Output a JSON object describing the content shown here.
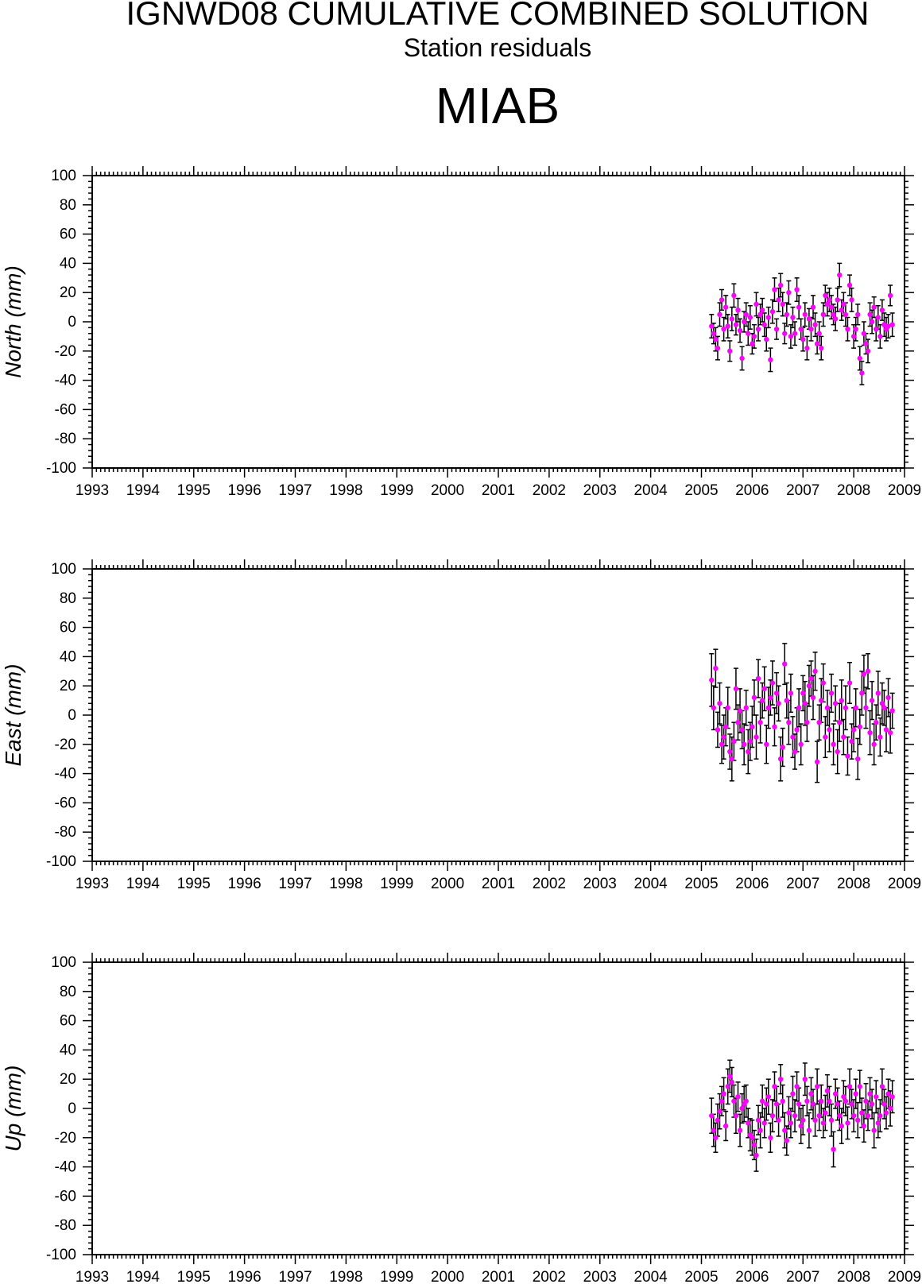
{
  "title": "IGNWD08 CUMULATIVE COMBINED SOLUTION",
  "subtitle": "Station residuals",
  "station": "MIAB",
  "colors": {
    "marker": "#ff00ff",
    "errorbar": "#000000",
    "axis": "#000000"
  },
  "chart_data": [
    {
      "type": "scatter",
      "ylabel": "North (mm)",
      "xlim": [
        1993,
        2009
      ],
      "ylim": [
        -100,
        100
      ],
      "x_ticks": [
        "1993",
        "1994",
        "1995",
        "1996",
        "1997",
        "1998",
        "1999",
        "2000",
        "2001",
        "2002",
        "2003",
        "2004",
        "2005",
        "2006",
        "2007",
        "2008",
        "2009"
      ],
      "y_ticks": [
        "100",
        "80",
        "60",
        "40",
        "20",
        "0",
        "-20",
        "-40",
        "-60",
        "-80",
        "-100"
      ],
      "grid": false,
      "series": [
        {
          "x": [
            2005.2,
            2005.24,
            2005.28,
            2005.32,
            2005.36,
            2005.4,
            2005.44,
            2005.48,
            2005.52,
            2005.56,
            2005.6,
            2005.64,
            2005.68,
            2005.72,
            2005.76,
            2005.8,
            2005.84,
            2005.88,
            2005.92,
            2005.96,
            2006.0,
            2006.04,
            2006.08,
            2006.12,
            2006.16,
            2006.2,
            2006.24,
            2006.28,
            2006.32,
            2006.36,
            2006.4,
            2006.44,
            2006.48,
            2006.52,
            2006.56,
            2006.6,
            2006.64,
            2006.68,
            2006.72,
            2006.76,
            2006.8,
            2006.84,
            2006.88,
            2006.92,
            2006.96,
            2007.0,
            2007.04,
            2007.08,
            2007.12,
            2007.16,
            2007.2,
            2007.24,
            2007.28,
            2007.32,
            2007.36,
            2007.4,
            2007.44,
            2007.48,
            2007.52,
            2007.56,
            2007.6,
            2007.64,
            2007.68,
            2007.72,
            2007.76,
            2007.8,
            2007.84,
            2007.88,
            2007.92,
            2007.96,
            2008.0,
            2008.04,
            2008.08,
            2008.12,
            2008.16,
            2008.2,
            2008.24,
            2008.28,
            2008.32,
            2008.36,
            2008.4,
            2008.44,
            2008.48,
            2008.52,
            2008.56,
            2008.6,
            2008.64,
            2008.68,
            2008.72,
            2008.76
          ],
          "y": [
            -3,
            -8,
            -12,
            -18,
            5,
            15,
            -5,
            10,
            -3,
            -20,
            2,
            18,
            -2,
            8,
            -6,
            -25,
            0,
            5,
            -8,
            3,
            -15,
            -10,
            12,
            -5,
            5,
            8,
            -2,
            -12,
            3,
            -26,
            7,
            22,
            -5,
            15,
            25,
            12,
            -8,
            5,
            20,
            -10,
            3,
            -8,
            22,
            10,
            -5,
            -12,
            5,
            -18,
            2,
            -5,
            10,
            -2,
            -15,
            -8,
            -18,
            5,
            18,
            12,
            15,
            10,
            5,
            2,
            15,
            32,
            8,
            12,
            5,
            -5,
            25,
            15,
            -10,
            -5,
            5,
            -25,
            -35,
            -8,
            -15,
            -20,
            5,
            0,
            10,
            -5,
            3,
            -10,
            8,
            -2,
            -5,
            -3,
            18,
            -2
          ],
          "err": [
            8,
            7,
            8,
            8,
            8,
            7,
            8,
            8,
            8,
            7,
            8,
            8,
            7,
            8,
            8,
            8,
            7,
            8,
            8,
            8,
            7,
            8,
            8,
            8,
            7,
            8,
            8,
            8,
            7,
            8,
            8,
            8,
            7,
            8,
            8,
            8,
            7,
            8,
            8,
            8,
            7,
            8,
            8,
            8,
            7,
            8,
            8,
            8,
            7,
            8,
            8,
            8,
            7,
            8,
            8,
            8,
            7,
            8,
            8,
            8,
            7,
            8,
            8,
            8,
            7,
            8,
            8,
            8,
            7,
            8,
            8,
            8,
            7,
            8,
            8,
            8,
            7,
            8,
            8,
            8,
            7,
            8,
            8,
            8,
            7,
            8,
            8,
            8,
            7,
            8
          ]
        }
      ]
    },
    {
      "type": "scatter",
      "ylabel": "East (mm)",
      "xlim": [
        1993,
        2009
      ],
      "ylim": [
        -100,
        100
      ],
      "x_ticks": [
        "1993",
        "1994",
        "1995",
        "1996",
        "1997",
        "1998",
        "1999",
        "2000",
        "2001",
        "2002",
        "2003",
        "2004",
        "2005",
        "2006",
        "2007",
        "2008",
        "2009"
      ],
      "y_ticks": [
        "100",
        "80",
        "60",
        "40",
        "20",
        "0",
        "-20",
        "-40",
        "-60",
        "-80",
        "-100"
      ],
      "grid": false,
      "series": [
        {
          "x": [
            2005.2,
            2005.24,
            2005.28,
            2005.32,
            2005.36,
            2005.4,
            2005.44,
            2005.48,
            2005.52,
            2005.56,
            2005.6,
            2005.64,
            2005.68,
            2005.72,
            2005.76,
            2005.8,
            2005.84,
            2005.88,
            2005.92,
            2005.96,
            2006.0,
            2006.04,
            2006.08,
            2006.12,
            2006.16,
            2006.2,
            2006.24,
            2006.28,
            2006.32,
            2006.36,
            2006.4,
            2006.44,
            2006.48,
            2006.52,
            2006.56,
            2006.6,
            2006.64,
            2006.68,
            2006.72,
            2006.76,
            2006.8,
            2006.84,
            2006.88,
            2006.92,
            2006.96,
            2007.0,
            2007.04,
            2007.08,
            2007.12,
            2007.16,
            2007.2,
            2007.24,
            2007.28,
            2007.32,
            2007.36,
            2007.4,
            2007.44,
            2007.48,
            2007.52,
            2007.56,
            2007.6,
            2007.64,
            2007.68,
            2007.72,
            2007.76,
            2007.8,
            2007.84,
            2007.88,
            2007.92,
            2007.96,
            2008.0,
            2008.04,
            2008.08,
            2008.12,
            2008.16,
            2008.2,
            2008.24,
            2008.28,
            2008.32,
            2008.36,
            2008.4,
            2008.44,
            2008.48,
            2008.52,
            2008.56,
            2008.6,
            2008.64,
            2008.68,
            2008.72,
            2008.76
          ],
          "y": [
            24,
            5,
            32,
            -10,
            8,
            -20,
            -15,
            -8,
            5,
            -25,
            -30,
            -18,
            18,
            -5,
            3,
            -10,
            -20,
            5,
            -25,
            -18,
            -8,
            12,
            -15,
            25,
            -5,
            10,
            18,
            -20,
            5,
            12,
            22,
            -8,
            15,
            8,
            -30,
            -22,
            35,
            10,
            -5,
            15,
            -15,
            -25,
            -10,
            5,
            -20,
            15,
            8,
            -5,
            20,
            25,
            12,
            30,
            -32,
            -5,
            10,
            22,
            -15,
            5,
            -10,
            15,
            -20,
            8,
            -25,
            -5,
            10,
            -15,
            5,
            -28,
            22,
            -18,
            -10,
            5,
            -30,
            -8,
            15,
            28,
            5,
            30,
            -12,
            10,
            -20,
            -5,
            15,
            -15,
            8,
            5,
            -10,
            12,
            -12,
            3
          ],
          "err": [
            18,
            15,
            13,
            12,
            14,
            13,
            15,
            13,
            14,
            12,
            15,
            13,
            14,
            12,
            15,
            13,
            14,
            12,
            15,
            13,
            14,
            12,
            15,
            13,
            14,
            12,
            15,
            13,
            14,
            12,
            15,
            13,
            14,
            12,
            15,
            13,
            14,
            12,
            15,
            13,
            14,
            12,
            15,
            13,
            14,
            12,
            15,
            13,
            14,
            12,
            15,
            13,
            14,
            12,
            15,
            13,
            14,
            12,
            15,
            13,
            14,
            12,
            15,
            13,
            14,
            12,
            15,
            13,
            14,
            12,
            15,
            13,
            14,
            12,
            15,
            13,
            14,
            12,
            15,
            13,
            14,
            12,
            15,
            13,
            14,
            12,
            15,
            13,
            14,
            12
          ]
        }
      ]
    },
    {
      "type": "scatter",
      "ylabel": "Up (mm)",
      "xlim": [
        1993,
        2009
      ],
      "ylim": [
        -100,
        100
      ],
      "x_ticks": [
        "1993",
        "1994",
        "1995",
        "1996",
        "1997",
        "1998",
        "1999",
        "2000",
        "2001",
        "2002",
        "2003",
        "2004",
        "2005",
        "2006",
        "2007",
        "2008",
        "2009"
      ],
      "y_ticks": [
        "100",
        "80",
        "60",
        "40",
        "20",
        "0",
        "-20",
        "-40",
        "-60",
        "-80",
        "-100"
      ],
      "grid": false,
      "series": [
        {
          "x": [
            2005.2,
            2005.24,
            2005.28,
            2005.32,
            2005.36,
            2005.4,
            2005.44,
            2005.48,
            2005.52,
            2005.56,
            2005.6,
            2005.64,
            2005.68,
            2005.72,
            2005.76,
            2005.8,
            2005.84,
            2005.88,
            2005.92,
            2005.96,
            2006.0,
            2006.04,
            2006.08,
            2006.12,
            2006.16,
            2006.2,
            2006.24,
            2006.28,
            2006.32,
            2006.36,
            2006.4,
            2006.44,
            2006.48,
            2006.52,
            2006.56,
            2006.6,
            2006.64,
            2006.68,
            2006.72,
            2006.76,
            2006.8,
            2006.84,
            2006.88,
            2006.92,
            2006.96,
            2007.0,
            2007.04,
            2007.08,
            2007.12,
            2007.16,
            2007.2,
            2007.24,
            2007.28,
            2007.32,
            2007.36,
            2007.4,
            2007.44,
            2007.48,
            2007.52,
            2007.56,
            2007.6,
            2007.64,
            2007.68,
            2007.72,
            2007.76,
            2007.8,
            2007.84,
            2007.88,
            2007.92,
            2007.96,
            2008.0,
            2008.04,
            2008.08,
            2008.12,
            2008.16,
            2008.2,
            2008.24,
            2008.28,
            2008.32,
            2008.36,
            2008.4,
            2008.44,
            2008.48,
            2008.52,
            2008.56,
            2008.6,
            2008.64,
            2008.68,
            2008.72,
            2008.76
          ],
          "y": [
            -5,
            -15,
            -20,
            -8,
            -2,
            5,
            10,
            -12,
            15,
            22,
            18,
            5,
            -5,
            8,
            -15,
            0,
            3,
            5,
            -10,
            -18,
            -20,
            -25,
            -32,
            -8,
            -15,
            5,
            -10,
            3,
            8,
            -20,
            -5,
            15,
            3,
            -8,
            20,
            5,
            -15,
            -22,
            -3,
            -10,
            10,
            -5,
            15,
            3,
            -12,
            -8,
            20,
            5,
            -15,
            10,
            3,
            -8,
            15,
            -5,
            5,
            -10,
            -3,
            12,
            5,
            -8,
            -28,
            10,
            3,
            -5,
            -12,
            8,
            5,
            -10,
            15,
            3,
            -5,
            10,
            -8,
            15,
            -3,
            -12,
            5,
            -5,
            10,
            3,
            -15,
            8,
            -10,
            -5,
            15,
            3,
            -3,
            10,
            0,
            8
          ],
          "err": [
            12,
            11,
            10,
            11,
            12,
            10,
            11,
            10,
            12,
            11,
            10,
            11,
            12,
            10,
            11,
            10,
            12,
            11,
            10,
            11,
            12,
            10,
            11,
            10,
            12,
            11,
            10,
            11,
            12,
            10,
            11,
            10,
            12,
            11,
            10,
            11,
            12,
            10,
            11,
            10,
            12,
            11,
            10,
            11,
            12,
            10,
            11,
            10,
            12,
            11,
            10,
            11,
            12,
            10,
            11,
            10,
            12,
            11,
            10,
            11,
            12,
            10,
            11,
            10,
            12,
            11,
            10,
            11,
            12,
            10,
            11,
            10,
            12,
            11,
            10,
            11,
            12,
            10,
            11,
            10,
            12,
            11,
            10,
            11,
            12,
            10,
            11,
            10,
            12,
            11
          ]
        }
      ]
    }
  ]
}
